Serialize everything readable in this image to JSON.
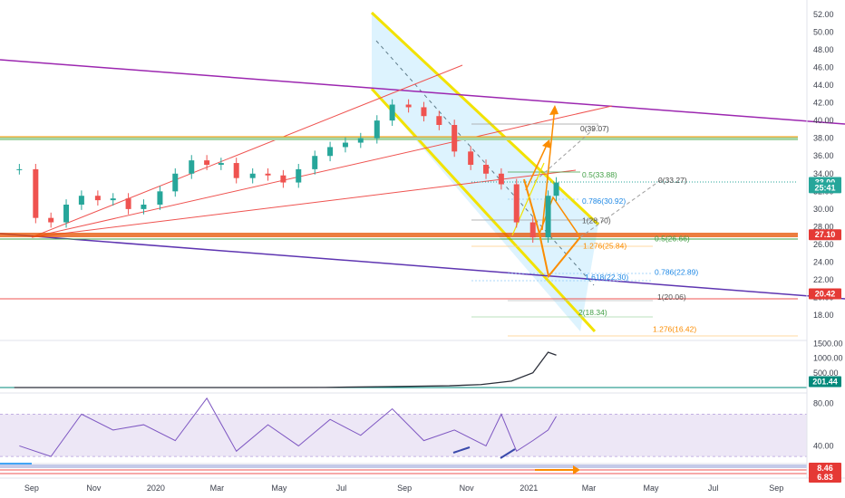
{
  "chart_data": {
    "type": "line",
    "title": "",
    "main_panel": {
      "y_ticks": [
        "52.00",
        "50.00",
        "48.00",
        "46.00",
        "44.00",
        "42.00",
        "40.00",
        "38.00",
        "36.00",
        "34.00",
        "32.00",
        "30.00",
        "28.00",
        "26.00",
        "24.00",
        "22.00",
        "20.00",
        "18.00"
      ],
      "ylim": [
        17,
        53
      ],
      "series": [
        {
          "type": "candlestick-close",
          "x": [
            "2019-08-20",
            "2019-09-05",
            "2019-09-20",
            "2019-10-05",
            "2019-10-20",
            "2019-11-05",
            "2019-11-20",
            "2019-12-05",
            "2019-12-20",
            "2020-01-05",
            "2020-01-20",
            "2020-02-05",
            "2020-02-20",
            "2020-03-05",
            "2020-03-20",
            "2020-04-05",
            "2020-04-20",
            "2020-05-05",
            "2020-05-20",
            "2020-06-05",
            "2020-06-20",
            "2020-07-05",
            "2020-07-20",
            "2020-08-05",
            "2020-08-20",
            "2020-09-05",
            "2020-09-20",
            "2020-10-05",
            "2020-10-20",
            "2020-11-05",
            "2020-11-20",
            "2020-12-05",
            "2020-12-20",
            "2021-01-05",
            "2021-01-20",
            "2021-01-28"
          ],
          "values": [
            34.5,
            29.0,
            28.5,
            30.5,
            31.5,
            31.0,
            31.2,
            30.0,
            30.5,
            32.0,
            34.0,
            35.5,
            35.0,
            35.2,
            33.5,
            34.0,
            33.8,
            33.0,
            34.5,
            36.0,
            37.0,
            37.5,
            38.0,
            40.0,
            41.8,
            41.5,
            40.5,
            39.5,
            36.5,
            35.0,
            34.0,
            32.8,
            28.5,
            26.8,
            31.5,
            33.0
          ]
        }
      ],
      "price_tags": [
        {
          "label": "33.00",
          "value": 33.0,
          "color": "#26a69a"
        },
        {
          "label": "25:41",
          "value": 32.4,
          "color": "#26a69a"
        },
        {
          "label": "27.10",
          "value": 27.1,
          "color": "#e53935"
        },
        {
          "label": "20.42",
          "value": 20.42,
          "color": "#e53935"
        }
      ],
      "fib_labels": [
        {
          "label": "0(39.07)",
          "value": 39.07,
          "color": "#444444"
        },
        {
          "label": "0.5(33.88)",
          "value": 33.88,
          "color": "#43a047"
        },
        {
          "label": "0(33.27)",
          "value": 33.27,
          "color": "#444444"
        },
        {
          "label": "0.786(30.92)",
          "value": 30.92,
          "color": "#1e88e5"
        },
        {
          "label": "1(28.70)",
          "value": 28.7,
          "color": "#555555"
        },
        {
          "label": "0.5(26.66)",
          "value": 26.66,
          "color": "#43a047"
        },
        {
          "label": "1.276(25.84)",
          "value": 25.84,
          "color": "#fb8c00"
        },
        {
          "label": "0.786(22.89)",
          "value": 22.89,
          "color": "#1e88e5"
        },
        {
          "label": "1.618(22.30)",
          "value": 22.3,
          "color": "#1e88e5"
        },
        {
          "label": "1(20.06)",
          "value": 20.06,
          "color": "#555555"
        },
        {
          "label": "2(18.34)",
          "value": 18.34,
          "color": "#43a047"
        },
        {
          "label": "1.276(16.42)",
          "value": 16.42,
          "color": "#fb8c00"
        }
      ]
    },
    "volume_panel": {
      "y_ticks": [
        "1500.00",
        "1000.00",
        "500.00"
      ],
      "ylim": [
        0,
        1600
      ],
      "last_tag": {
        "label": "201.44",
        "value": 201.44,
        "color": "#00897b"
      },
      "x": [
        "2019-08",
        "2019-10",
        "2019-12",
        "2020-02",
        "2020-04",
        "2020-06",
        "2020-08",
        "2020-10",
        "2020-11",
        "2020-12",
        "2021-01-05",
        "2021-01-20",
        "2021-01-28"
      ],
      "values": [
        0,
        0,
        0,
        0,
        0,
        5,
        30,
        60,
        100,
        220,
        500,
        1200,
        1100
      ]
    },
    "rsi_panel": {
      "y_ticks": [
        "80.00",
        "40.00"
      ],
      "ylim": [
        25,
        90
      ],
      "band": [
        30,
        70
      ],
      "x": [
        "2019-08-20",
        "2019-09-20",
        "2019-10-20",
        "2019-11-20",
        "2019-12-20",
        "2020-01-20",
        "2020-02-20",
        "2020-03-20",
        "2020-04-20",
        "2020-05-20",
        "2020-06-20",
        "2020-07-20",
        "2020-08-20",
        "2020-09-20",
        "2020-10-20",
        "2020-11-20",
        "2020-12-05",
        "2020-12-20",
        "2021-01-05",
        "2021-01-20",
        "2021-01-28"
      ],
      "values": [
        40,
        30,
        70,
        55,
        60,
        45,
        85,
        35,
        60,
        40,
        65,
        50,
        75,
        45,
        55,
        40,
        70,
        35,
        45,
        55,
        68
      ]
    },
    "bottom_panel": {
      "tags": [
        {
          "label": "8.46",
          "color": "#e53935"
        },
        {
          "label": "6.83",
          "color": "#e53935"
        }
      ]
    },
    "x_ticks": [
      "Sep",
      "Nov",
      "2020",
      "Mar",
      "May",
      "Jul",
      "Sep",
      "Nov",
      "2021",
      "Mar",
      "May",
      "Jul",
      "Sep"
    ],
    "colors": {
      "up": "#26a69a",
      "down": "#ef5350",
      "channel": "#f2e200",
      "channel_fill": "#b3e5fc",
      "trendline_purple": "#9c27b0",
      "support_orange": "#e65100",
      "projection": "#ff9800",
      "rsi_line": "#7e57c2",
      "rsi_band": "#ede7f6"
    }
  }
}
